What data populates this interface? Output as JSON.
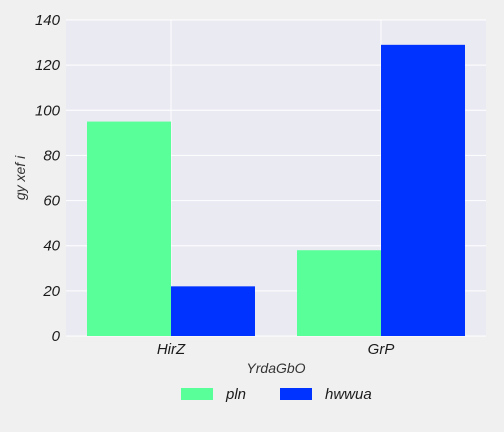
{
  "chart_data": {
    "type": "bar",
    "title": "",
    "xlabel": "YrdaGbO",
    "ylabel": "gy xef  i",
    "categories": [
      "HirZ",
      "GrP"
    ],
    "series": [
      {
        "name": "pln",
        "color": "#59ff99",
        "values": [
          95,
          38
        ]
      },
      {
        "name": "hwwua",
        "color": "#0033ff",
        "values": [
          22,
          129
        ]
      }
    ],
    "ylim": [
      0,
      140
    ],
    "yticks": [
      0,
      20,
      40,
      60,
      80,
      100,
      120,
      140
    ],
    "grid": true,
    "legend_position": "bottom-center",
    "colors": {
      "plot_background": "#eaeaf2",
      "figure_background": "#f0f0f0",
      "grid": "#ffffff"
    }
  }
}
